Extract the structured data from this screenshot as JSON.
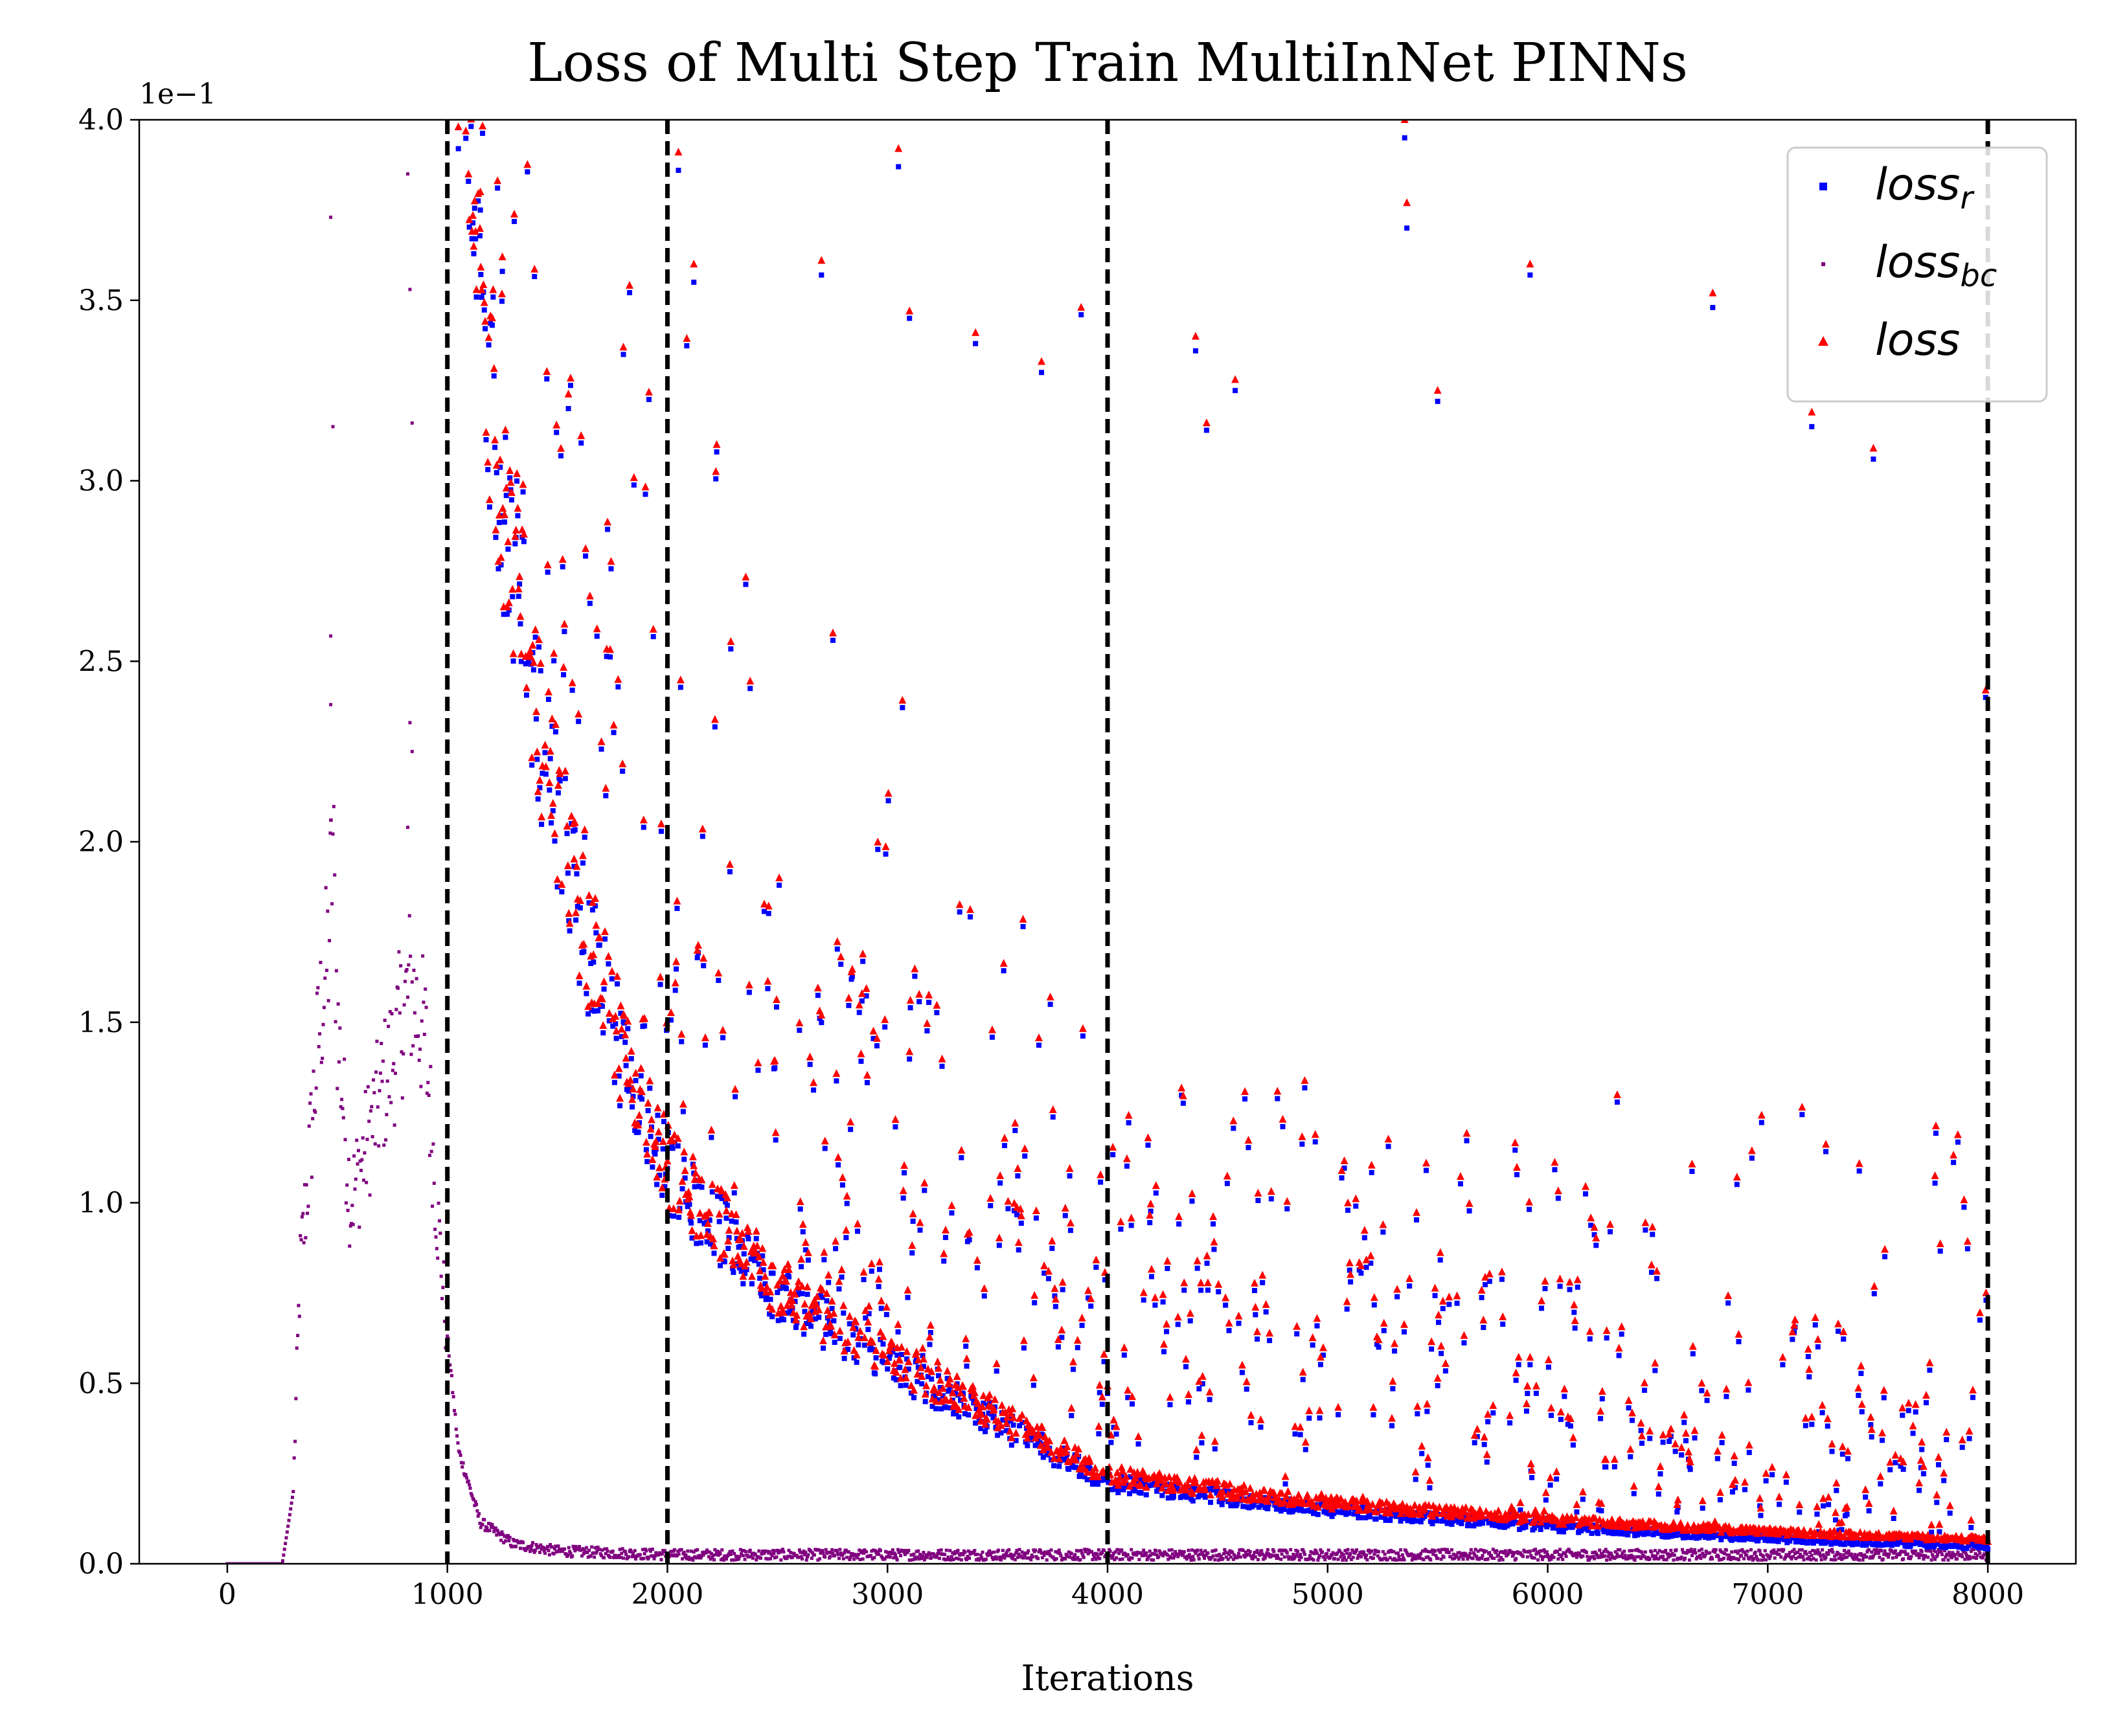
{
  "chart_data": {
    "type": "scatter",
    "title": "Loss of Multi Step Train MultiInNet PINNs",
    "xlabel": "Iterations",
    "ylabel": "",
    "y_offset_label": "1e−1",
    "xlim": [
      -400,
      8400
    ],
    "ylim": [
      0.0,
      4.0
    ],
    "x_ticks": [
      0,
      1000,
      2000,
      3000,
      4000,
      5000,
      6000,
      7000,
      8000
    ],
    "x_tick_labels": [
      "0",
      "1000",
      "2000",
      "3000",
      "4000",
      "5000",
      "6000",
      "7000",
      "8000"
    ],
    "y_ticks": [
      0.0,
      0.5,
      1.0,
      1.5,
      2.0,
      2.5,
      3.0,
      3.5,
      4.0
    ],
    "y_tick_labels": [
      "0.0",
      "0.5",
      "1.0",
      "1.5",
      "2.0",
      "2.5",
      "3.0",
      "3.5",
      "4.0"
    ],
    "vlines": [
      1000,
      2000,
      4000,
      8000
    ],
    "grid": false,
    "legend_position": "top-right",
    "series": [
      {
        "name": "loss_r",
        "legend_main": "loss",
        "legend_sub": "r",
        "color": "#0000ff",
        "marker": "square",
        "envelope": [
          [
            1000,
            4.2
          ],
          [
            1100,
            3.7
          ],
          [
            1200,
            2.85
          ],
          [
            1400,
            2.1
          ],
          [
            1600,
            1.6
          ],
          [
            1800,
            1.25
          ],
          [
            2000,
            0.97
          ],
          [
            2500,
            0.68
          ],
          [
            3000,
            0.5
          ],
          [
            4000,
            0.21
          ],
          [
            5000,
            0.14
          ],
          [
            6000,
            0.1
          ],
          [
            7000,
            0.07
          ],
          [
            8000,
            0.05
          ]
        ],
        "outliers": [
          [
            1050,
            3.92
          ],
          [
            1150,
            3.75
          ],
          [
            1250,
            3.58
          ],
          [
            1550,
            3.2
          ],
          [
            1800,
            3.35
          ],
          [
            2050,
            3.86
          ],
          [
            2120,
            3.55
          ],
          [
            3050,
            3.87
          ],
          [
            3100,
            3.45
          ],
          [
            2700,
            3.57
          ],
          [
            3400,
            3.38
          ],
          [
            3700,
            3.3
          ],
          [
            3880,
            3.46
          ],
          [
            4400,
            3.36
          ],
          [
            4580,
            3.25
          ],
          [
            5350,
            3.95
          ],
          [
            5360,
            3.7
          ],
          [
            5920,
            3.57
          ],
          [
            6750,
            3.48
          ],
          [
            7200,
            3.15
          ],
          [
            7480,
            3.06
          ],
          [
            7990,
            2.4
          ],
          [
            5500,
            3.22
          ],
          [
            4450,
            3.14
          ]
        ]
      },
      {
        "name": "loss_bc",
        "legend_main": "loss",
        "legend_sub": "bc",
        "color": "#800080",
        "marker": "point",
        "profile": [
          [
            0,
            0.0
          ],
          [
            250,
            0.0
          ],
          [
            300,
            0.2
          ],
          [
            330,
            0.8
          ],
          [
            370,
            1.1
          ],
          [
            420,
            1.5
          ],
          [
            460,
            1.7
          ],
          [
            480,
            2.0
          ],
          [
            500,
            1.5
          ],
          [
            560,
            1.0
          ],
          [
            650,
            1.2
          ],
          [
            750,
            1.4
          ],
          [
            830,
            1.6
          ],
          [
            900,
            1.45
          ],
          [
            950,
            1.0
          ],
          [
            1000,
            0.62
          ],
          [
            1050,
            0.3
          ],
          [
            1150,
            0.1
          ],
          [
            1300,
            0.04
          ],
          [
            1500,
            0.02
          ],
          [
            2000,
            0.01
          ],
          [
            8000,
            0.01
          ]
        ],
        "outliers": [
          [
            470,
            3.73
          ],
          [
            480,
            3.15
          ],
          [
            470,
            2.57
          ],
          [
            470,
            2.38
          ],
          [
            470,
            2.06
          ],
          [
            820,
            3.85
          ],
          [
            830,
            3.53
          ],
          [
            840,
            3.16
          ],
          [
            830,
            2.33
          ],
          [
            840,
            2.25
          ],
          [
            820,
            2.04
          ]
        ]
      },
      {
        "name": "loss",
        "legend_main": "loss",
        "legend_sub": "",
        "color": "#ff0000",
        "marker": "triangle-up",
        "envelope": [
          [
            1000,
            4.2
          ],
          [
            1100,
            3.7
          ],
          [
            1200,
            2.85
          ],
          [
            1400,
            2.1
          ],
          [
            1600,
            1.6
          ],
          [
            1800,
            1.25
          ],
          [
            2000,
            0.97
          ],
          [
            2500,
            0.68
          ],
          [
            3000,
            0.5
          ],
          [
            4000,
            0.21
          ],
          [
            5000,
            0.14
          ],
          [
            6000,
            0.1
          ],
          [
            7000,
            0.07
          ],
          [
            8000,
            0.05
          ]
        ],
        "outliers": [
          [
            1050,
            3.98
          ],
          [
            1150,
            3.8
          ],
          [
            1250,
            3.62
          ],
          [
            1550,
            3.24
          ],
          [
            1800,
            3.37
          ],
          [
            2050,
            3.91
          ],
          [
            2120,
            3.6
          ],
          [
            3050,
            3.92
          ],
          [
            3100,
            3.47
          ],
          [
            2700,
            3.61
          ],
          [
            3400,
            3.41
          ],
          [
            3700,
            3.33
          ],
          [
            3880,
            3.48
          ],
          [
            4400,
            3.4
          ],
          [
            4580,
            3.28
          ],
          [
            5350,
            4.0
          ],
          [
            5360,
            3.77
          ],
          [
            5920,
            3.6
          ],
          [
            6750,
            3.52
          ],
          [
            7200,
            3.19
          ],
          [
            7480,
            3.09
          ],
          [
            7990,
            2.42
          ],
          [
            5500,
            3.25
          ],
          [
            4450,
            3.16
          ]
        ]
      }
    ]
  }
}
